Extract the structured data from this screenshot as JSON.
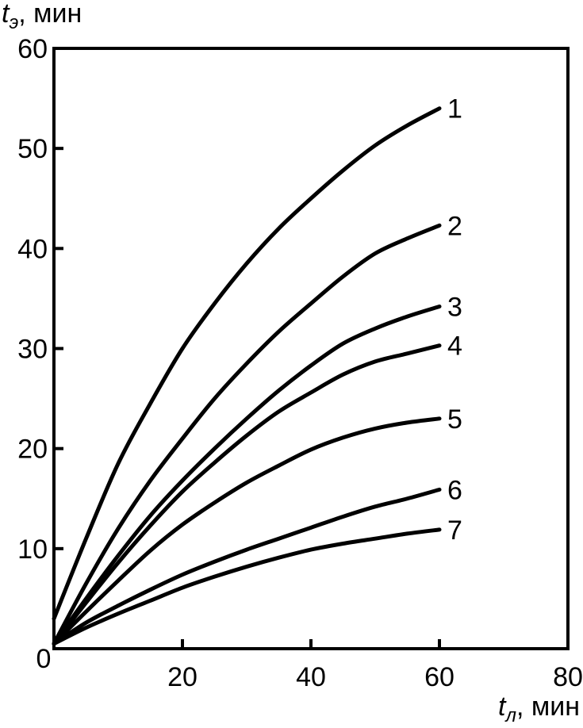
{
  "chart_data": {
    "type": "line",
    "xlim": [
      0,
      80
    ],
    "ylim": [
      0,
      60
    ],
    "x_ticks": [
      0,
      20,
      40,
      60,
      80
    ],
    "y_ticks": [
      0,
      10,
      20,
      30,
      40,
      50,
      60
    ],
    "x_tick_labels": [
      "20",
      "40",
      "60",
      "80"
    ],
    "y_tick_labels": [
      "10",
      "20",
      "30",
      "40",
      "50",
      "60"
    ],
    "origin_label": "0",
    "xlabel": {
      "main": "t",
      "sub": "л",
      "unit": ", мин"
    },
    "ylabel": {
      "main": "t",
      "sub": "э",
      "unit": ", мин"
    },
    "grid": false,
    "legend": "none",
    "series": [
      {
        "name": "1",
        "x": [
          0,
          5,
          10,
          15,
          20,
          25,
          30,
          35,
          40,
          45,
          50,
          55,
          60
        ],
        "y": [
          3,
          11,
          18.5,
          24.5,
          30,
          34.5,
          38.5,
          42,
          45,
          47.8,
          50.3,
          52.3,
          54
        ]
      },
      {
        "name": "2",
        "x": [
          0,
          5,
          10,
          15,
          20,
          25,
          30,
          35,
          40,
          45,
          50,
          55,
          60
        ],
        "y": [
          0.5,
          6.5,
          12,
          16.8,
          21,
          25,
          28.5,
          31.7,
          34.5,
          37.2,
          39.5,
          41,
          42.3
        ]
      },
      {
        "name": "3",
        "x": [
          0,
          5,
          10,
          15,
          20,
          25,
          30,
          35,
          40,
          45,
          50,
          55,
          60
        ],
        "y": [
          0.5,
          5,
          9.3,
          13.3,
          16.8,
          20,
          23,
          25.8,
          28.3,
          30.5,
          32,
          33.2,
          34.2
        ]
      },
      {
        "name": "4",
        "x": [
          0,
          5,
          10,
          15,
          20,
          25,
          30,
          35,
          40,
          45,
          50,
          55,
          60
        ],
        "y": [
          0.5,
          4.6,
          8.6,
          12.3,
          15.7,
          18.6,
          21.3,
          23.7,
          25.6,
          27.4,
          28.7,
          29.5,
          30.3
        ]
      },
      {
        "name": "5",
        "x": [
          0,
          5,
          10,
          15,
          20,
          25,
          30,
          35,
          40,
          45,
          50,
          55,
          60
        ],
        "y": [
          0.5,
          3.7,
          6.8,
          9.8,
          12.4,
          14.6,
          16.6,
          18.3,
          19.9,
          21.1,
          22,
          22.6,
          23
        ]
      },
      {
        "name": "6",
        "x": [
          0,
          5,
          10,
          15,
          20,
          25,
          30,
          35,
          40,
          45,
          50,
          55,
          60
        ],
        "y": [
          0.5,
          2.6,
          4.3,
          5.9,
          7.4,
          8.7,
          9.9,
          11,
          12.1,
          13.2,
          14.2,
          15,
          15.9
        ]
      },
      {
        "name": "7",
        "x": [
          0,
          5,
          10,
          15,
          20,
          25,
          30,
          35,
          40,
          45,
          50,
          55,
          60
        ],
        "y": [
          0.5,
          2.1,
          3.5,
          4.8,
          6.1,
          7.2,
          8.2,
          9.1,
          9.9,
          10.5,
          11,
          11.5,
          11.9
        ]
      }
    ]
  }
}
